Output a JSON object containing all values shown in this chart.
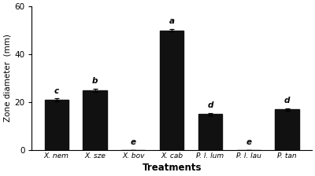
{
  "categories": [
    "X. nem",
    "X. sze",
    "X. bov",
    "X. cab",
    "P. l. lum",
    "P. l. lau",
    "P. tan"
  ],
  "values": [
    21.0,
    25.0,
    0.0,
    50.0,
    15.0,
    0.0,
    17.0
  ],
  "errors": [
    0.6,
    0.6,
    0.0,
    0.6,
    0.5,
    0.0,
    0.5
  ],
  "letters": [
    "c",
    "b",
    "e",
    "a",
    "d",
    "e",
    "d"
  ],
  "letter_offsets": [
    1.5,
    1.5,
    1.5,
    1.5,
    1.5,
    1.5,
    1.5
  ],
  "bar_color": "#111111",
  "ylabel": "Zone diameter  (mm)",
  "xlabel": "Treatments",
  "ylim": [
    0,
    60
  ],
  "yticks": [
    0,
    20,
    40,
    60
  ],
  "background_color": "#ffffff",
  "plot_bg_color": "#ffffff",
  "bar_width": 0.62,
  "fig_width": 4.0,
  "fig_height": 2.24,
  "dpi": 100
}
